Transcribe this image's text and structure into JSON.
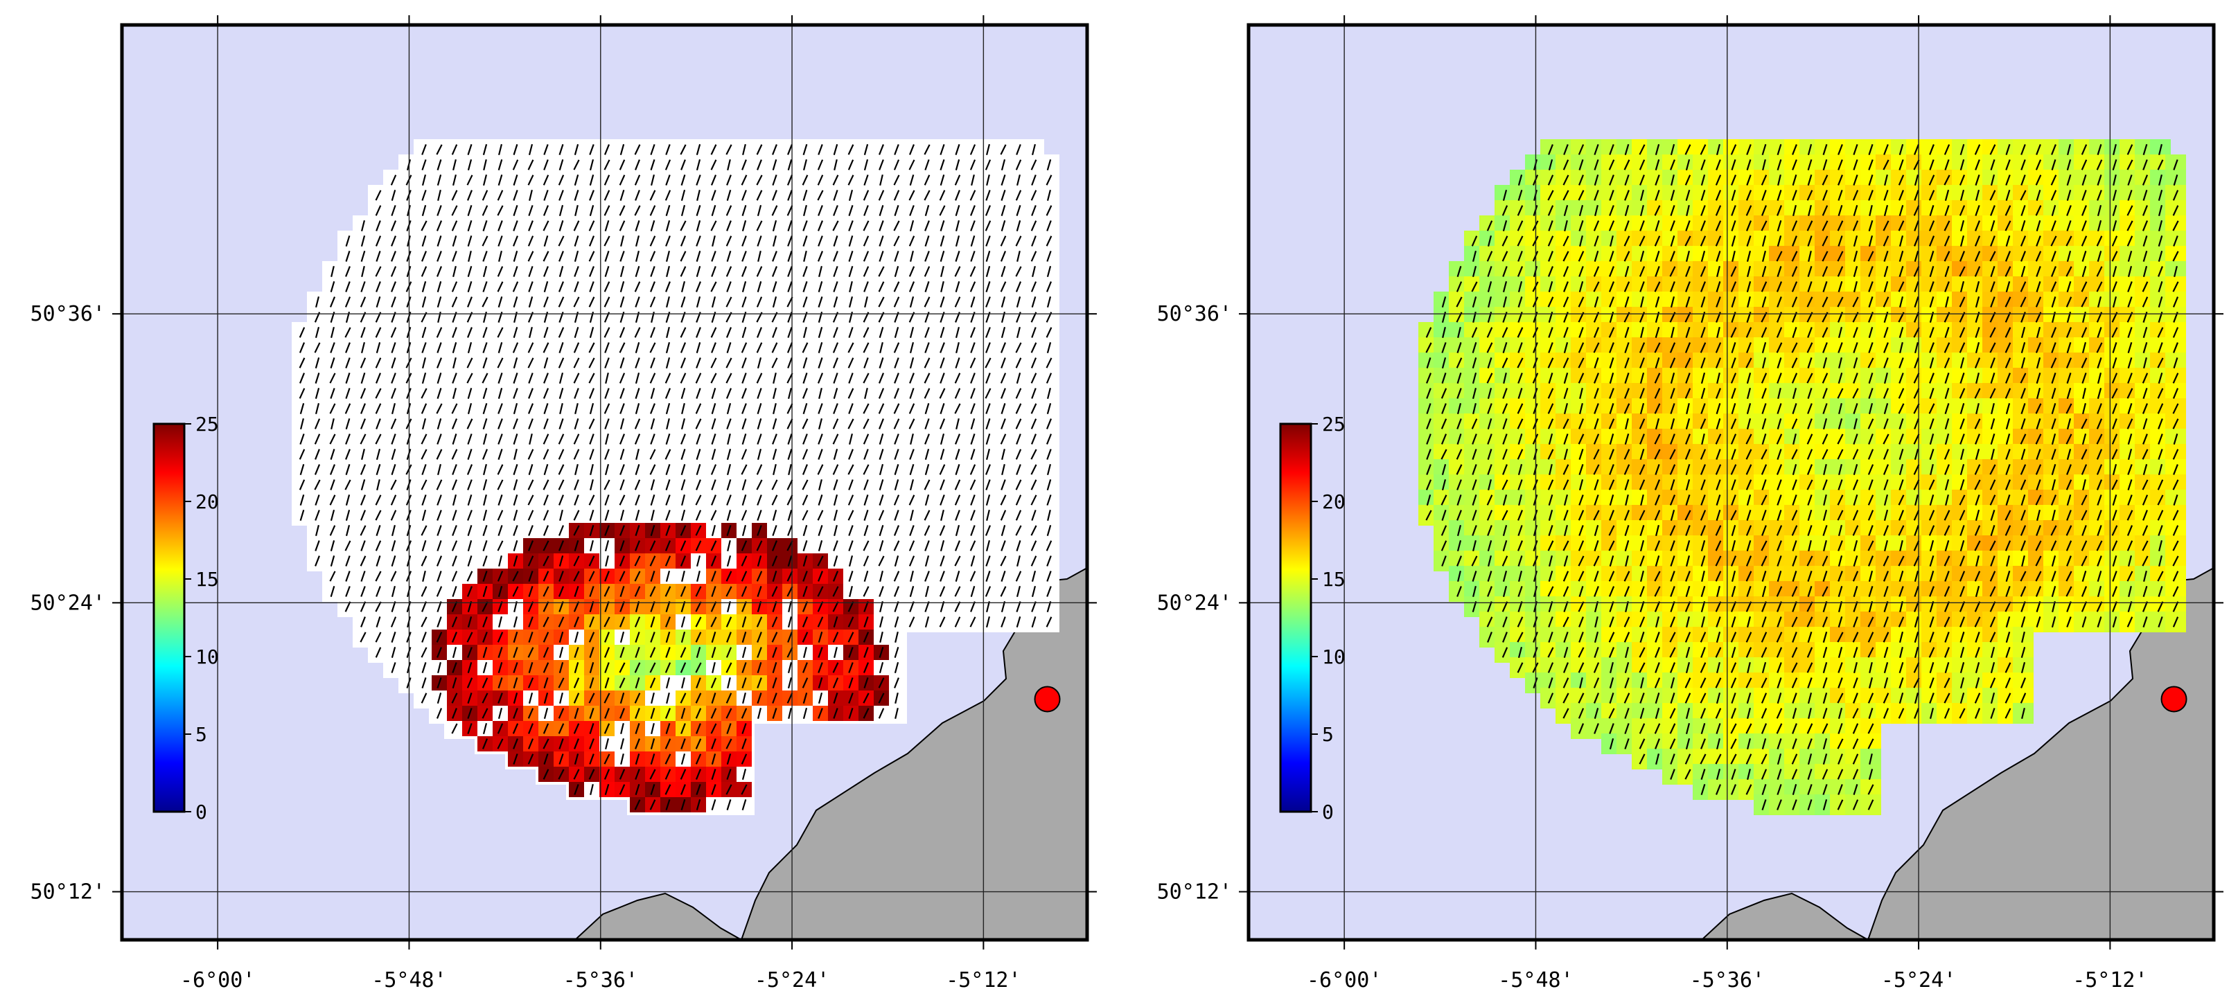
{
  "figure": {
    "panels": [
      {
        "name": "left",
        "x_ticks": [
          "-6°00'",
          "-5°48'",
          "-5°36'",
          "-5°24'",
          "-5°12'"
        ],
        "y_ticks": [
          "50°36'",
          "50°24'",
          "50°12'"
        ],
        "colorbar": {
          "min": 0,
          "max": 25,
          "labels": [
            "25",
            "20",
            "15",
            "10",
            "5",
            "0"
          ],
          "colormap": "jet"
        }
      },
      {
        "name": "right",
        "x_ticks": [
          "-6°00'",
          "-5°48'",
          "-5°36'",
          "-5°24'",
          "-5°12'"
        ],
        "y_ticks": [
          "50°36'",
          "50°24'",
          "50°12'"
        ],
        "colorbar": {
          "min": 0,
          "max": 25,
          "labels": [
            "25",
            "20",
            "15",
            "10",
            "5",
            "0"
          ],
          "colormap": "jet"
        }
      }
    ]
  },
  "colors": {
    "sea": "#d9dbf9",
    "land": "#a9a9a9",
    "coast": "#000000",
    "station": "#ff0000",
    "frame": "#000000",
    "grid": "#222222"
  },
  "map": {
    "lon_range": [
      -6.1,
      -5.0917
    ],
    "lat_range": [
      50.1667,
      50.8
    ],
    "grid_lons": [
      -6.0,
      -5.8,
      -5.6,
      -5.4,
      -5.2
    ],
    "grid_lats": [
      50.6,
      50.4,
      50.2
    ],
    "station": {
      "lon": -5.1333,
      "lat": 50.3333
    },
    "left_panel": "masked vector field, colored where present",
    "right_panel": "full vector field with colored magnitude"
  }
}
